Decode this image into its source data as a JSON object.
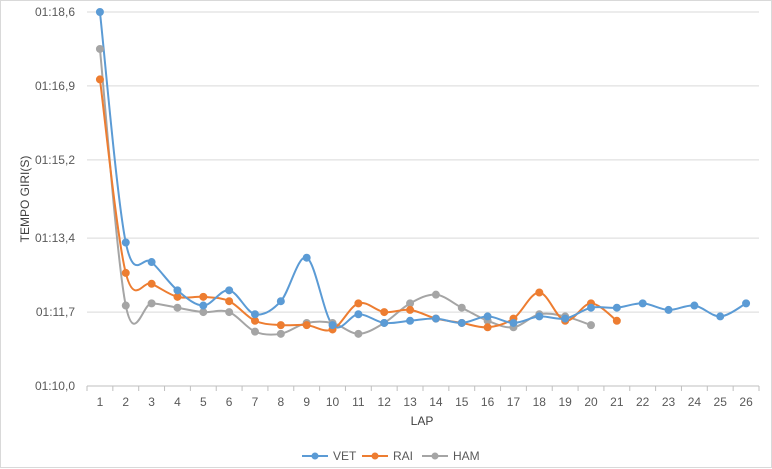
{
  "chart_data": {
    "type": "line",
    "xlabel": "LAP",
    "ylabel": "TEMPO GIRI(S)",
    "x": [
      1,
      2,
      3,
      4,
      5,
      6,
      7,
      8,
      9,
      10,
      11,
      12,
      13,
      14,
      15,
      16,
      17,
      18,
      19,
      20,
      21,
      22,
      23,
      24,
      25,
      26
    ],
    "x_tick_labels": [
      "1",
      "2",
      "3",
      "4",
      "5",
      "6",
      "7",
      "8",
      "9",
      "10",
      "11",
      "12",
      "13",
      "14",
      "15",
      "16",
      "17",
      "18",
      "19",
      "20",
      "21",
      "22",
      "23",
      "24",
      "25",
      "26"
    ],
    "y_tick_values": [
      70.0,
      71.7,
      73.4,
      75.2,
      76.9,
      78.6
    ],
    "y_tick_labels": [
      "01:10,0",
      "01:11,7",
      "01:13,4",
      "01:15,2",
      "01:16,9",
      "01:18,6"
    ],
    "ylim": [
      70.0,
      78.6
    ],
    "y_unit": "seconds",
    "grid": "horizontal",
    "legend_position": "bottom",
    "series": [
      {
        "name": "VET",
        "color": "#5b9bd5",
        "values": [
          78.6,
          73.3,
          72.85,
          72.2,
          71.85,
          72.2,
          71.65,
          71.95,
          72.95,
          71.4,
          71.65,
          71.45,
          71.5,
          71.55,
          71.45,
          71.6,
          71.45,
          71.6,
          71.55,
          71.8,
          71.8,
          71.9,
          71.75,
          71.85,
          71.6,
          71.9
        ]
      },
      {
        "name": "RAI",
        "color": "#ed7d31",
        "values": [
          77.05,
          72.6,
          72.35,
          72.05,
          72.05,
          71.95,
          71.5,
          71.4,
          71.4,
          71.3,
          71.9,
          71.7,
          71.75,
          71.55,
          71.45,
          71.35,
          71.55,
          72.15,
          71.5,
          71.9,
          71.5,
          null,
          null,
          null,
          null,
          null
        ]
      },
      {
        "name": "HAM",
        "color": "#a5a5a5",
        "values": [
          77.75,
          71.85,
          71.9,
          71.8,
          71.7,
          71.7,
          71.25,
          71.2,
          71.45,
          71.45,
          71.2,
          71.45,
          71.9,
          72.1,
          71.8,
          71.5,
          71.35,
          71.65,
          71.6,
          71.4,
          null,
          null,
          null,
          null,
          null,
          null
        ]
      }
    ]
  }
}
